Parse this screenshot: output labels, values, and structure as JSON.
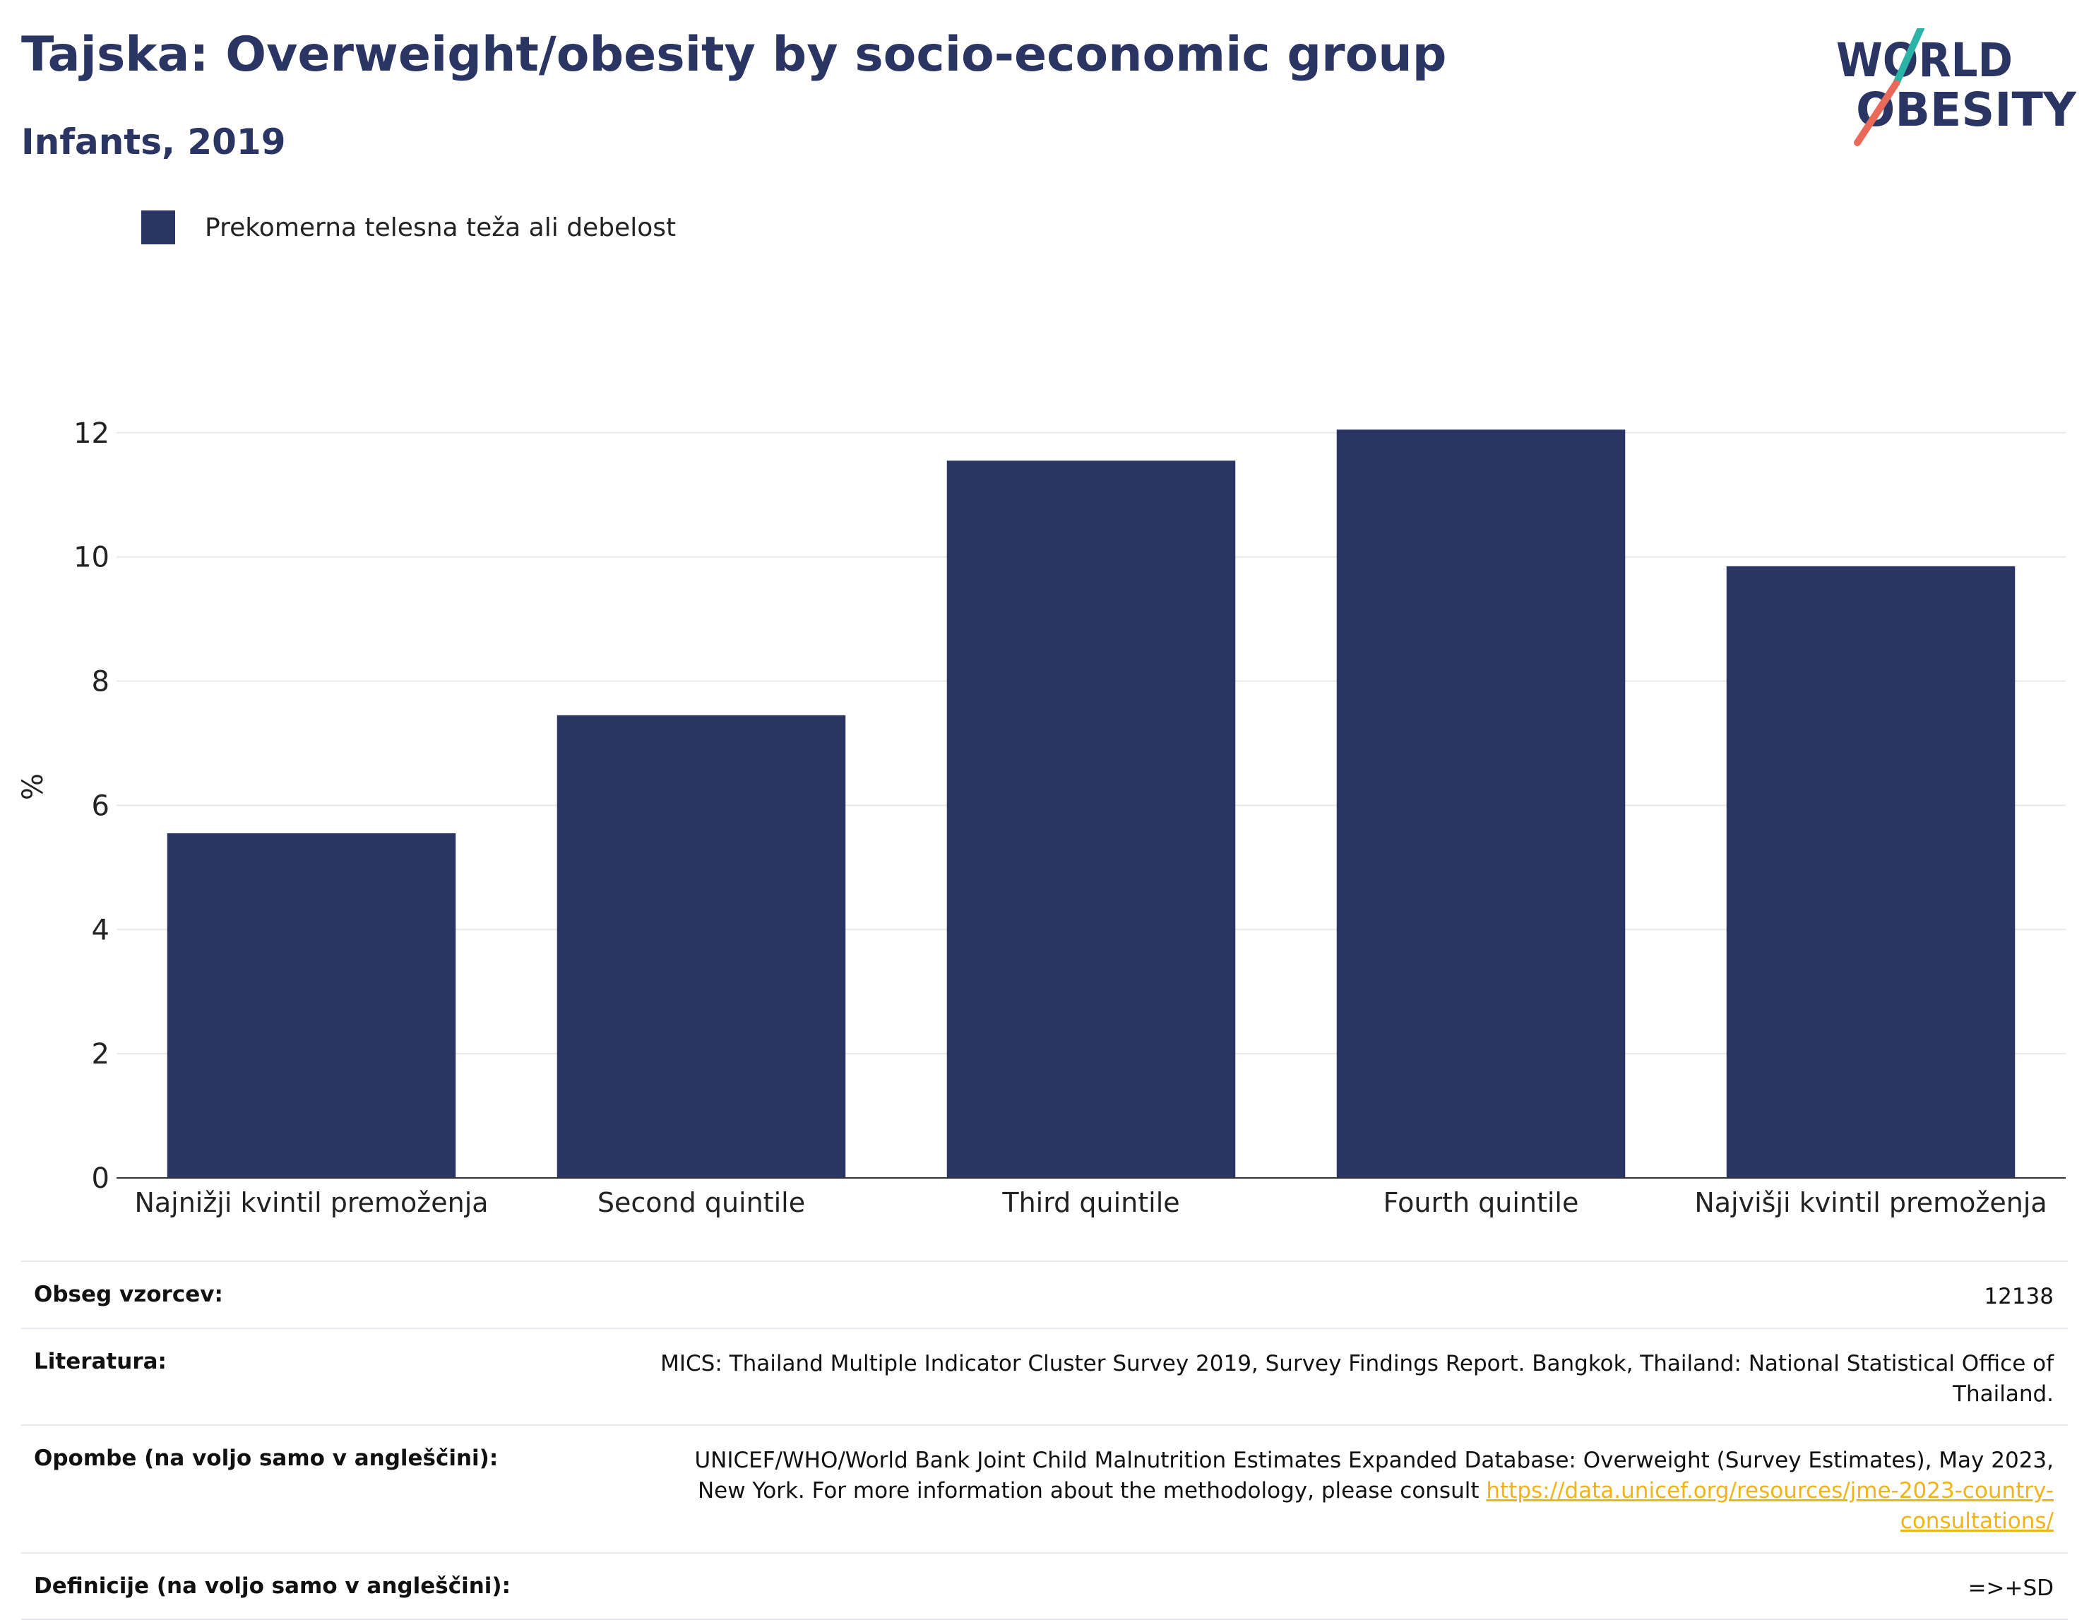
{
  "header": {
    "title": "Tajska: Overweight/obesity by socio-economic group",
    "subtitle": "Infants, 2019"
  },
  "logo": {
    "line1": "WORLD",
    "line2": "OBESITY",
    "colors": {
      "text": "#2b3563",
      "slash_top": "#2bb3a8",
      "slash_bottom": "#ea6a5a"
    }
  },
  "legend": {
    "label": "Prekomerna telesna teža ali debelost",
    "color": "#2b3563"
  },
  "chart_data": {
    "type": "bar",
    "title": "Tajska: Overweight/obesity by socio-economic group",
    "subtitle": "Infants, 2019",
    "categories": [
      "Najnižji kvintil premoženja",
      "Second quintile",
      "Third quintile",
      "Fourth quintile",
      "Najvišji kvintil premoženja"
    ],
    "series": [
      {
        "name": "Prekomerna telesna teža ali debelost",
        "values": [
          5.55,
          7.45,
          11.55,
          12.05,
          9.85
        ],
        "color": "#2b3563"
      }
    ],
    "xlabel": "",
    "ylabel": "%",
    "ylim": [
      0,
      12.6
    ],
    "yticks": [
      0,
      2,
      4,
      6,
      8,
      10,
      12
    ],
    "grid": true,
    "legend_position": "top-left"
  },
  "meta": {
    "sample_size_label": "Obseg vzorcev:",
    "sample_size_value": "12138",
    "literature_label": "Literatura:",
    "literature_value": "MICS: Thailand Multiple Indicator Cluster Survey 2019, Survey Findings Report. Bangkok, Thailand: National Statistical Office of Thailand.",
    "notes_label": "Opombe (na voljo samo v angleščini):",
    "notes_value": "UNICEF/WHO/World Bank Joint Child Malnutrition Estimates Expanded Database: Overweight (Survey Estimates), May 2023, New York. For more information about the methodology, please consult",
    "notes_link": "https://data.unicef.org/resources/jme-2023-country-consultations/",
    "definitions_label": "Definicije (na voljo samo v angleščini):",
    "definitions_value": "=>+SD"
  }
}
